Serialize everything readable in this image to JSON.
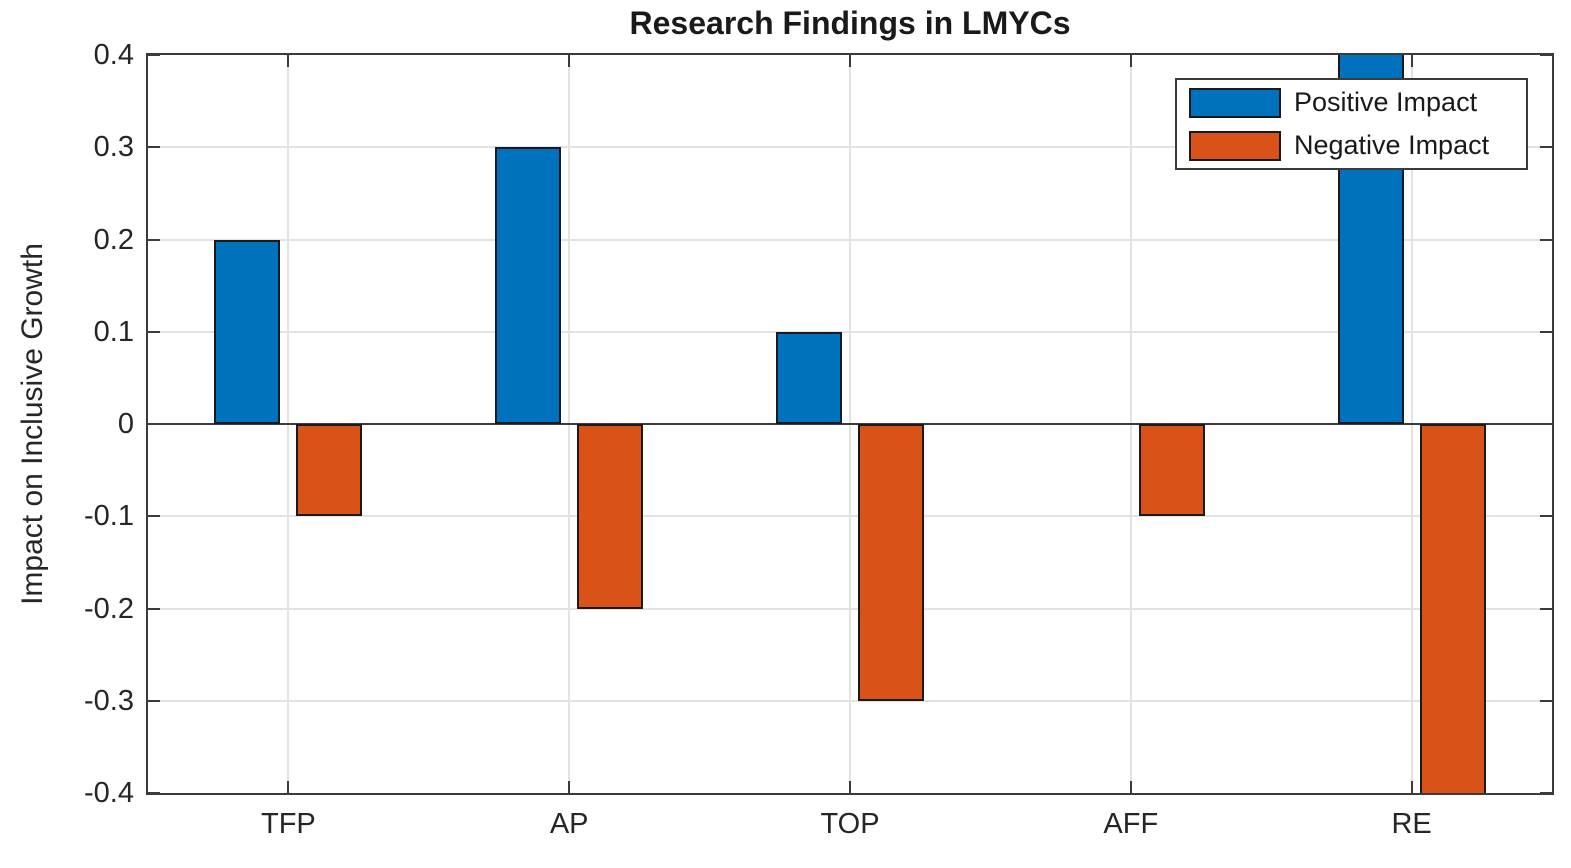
{
  "chart_data": {
    "type": "bar",
    "title": "Research Findings in LMYCs",
    "xlabel": "",
    "ylabel": "Impact on Inclusive Growth",
    "categories": [
      "TFP",
      "AP",
      "TOP",
      "AFF",
      "RE"
    ],
    "series": [
      {
        "name": "Positive Impact",
        "color": "#0072BD",
        "values": [
          0.2,
          0.3,
          0.1,
          0,
          0.5
        ]
      },
      {
        "name": "Negative Impact",
        "color": "#D95319",
        "values": [
          -0.1,
          -0.2,
          -0.3,
          -0.1,
          -0.5
        ]
      }
    ],
    "ylim": [
      -0.4,
      0.4
    ],
    "yticks": [
      -0.4,
      -0.3,
      -0.2,
      -0.1,
      0,
      0.1,
      0.2,
      0.3,
      0.4
    ],
    "ytick_labels": [
      "-0.4",
      "-0.3",
      "-0.2",
      "-0.1",
      "0",
      "0.1",
      "0.2",
      "0.3",
      "0.4"
    ],
    "grid": true,
    "values_clipped_to_ylim": true,
    "legend_position": "top-right",
    "colors": {
      "axis": "#3b3b3b",
      "grid": "#e3e3e3",
      "bar_edge": "#1a1a1a",
      "text": "#262626"
    }
  }
}
